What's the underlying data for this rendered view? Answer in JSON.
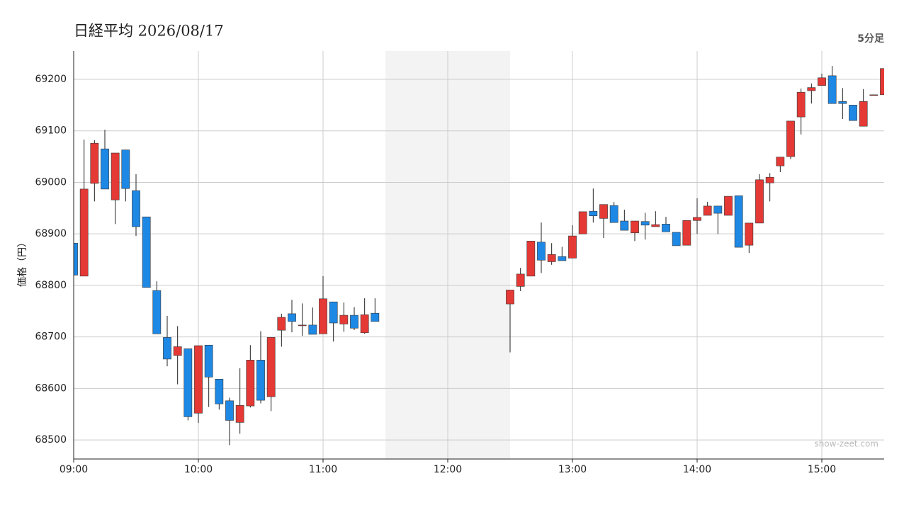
{
  "chart_data": {
    "type": "candlestick",
    "title": "日経平均 2026/08/17",
    "interval_label": "5分足",
    "y_label": "価格（円）",
    "watermark": "show-zeet.com",
    "up_color": "#e53935",
    "down_color": "#1e88e5",
    "xlim": [
      "09:00",
      "15:30"
    ],
    "xticks": [
      "09:00",
      "10:00",
      "11:00",
      "12:00",
      "13:00",
      "14:00",
      "15:00"
    ],
    "shade": [
      "11:30",
      "12:30"
    ],
    "ylim": [
      68463,
      69255
    ],
    "yticks": [
      68500,
      68600,
      68700,
      68800,
      68900,
      69000,
      69100,
      69200
    ],
    "grid": true,
    "x": [
      "09:00",
      "09:05",
      "09:10",
      "09:15",
      "09:20",
      "09:25",
      "09:30",
      "09:35",
      "09:40",
      "09:45",
      "09:50",
      "09:55",
      "10:00",
      "10:05",
      "10:10",
      "10:15",
      "10:20",
      "10:25",
      "10:30",
      "10:35",
      "10:40",
      "10:45",
      "10:50",
      "10:55",
      "11:00",
      "11:05",
      "11:10",
      "11:15",
      "11:20",
      "11:25",
      "12:30",
      "12:35",
      "12:40",
      "12:45",
      "12:50",
      "12:55",
      "13:00",
      "13:05",
      "13:10",
      "13:15",
      "13:20",
      "13:25",
      "13:30",
      "13:35",
      "13:40",
      "13:45",
      "13:50",
      "13:55",
      "14:00",
      "14:05",
      "14:10",
      "14:15",
      "14:20",
      "14:25",
      "14:30",
      "14:35",
      "14:40",
      "14:45",
      "14:50",
      "14:55",
      "15:00",
      "15:05",
      "15:10",
      "15:15",
      "15:20",
      "15:25",
      "15:30"
    ],
    "open": [
      68882,
      68818,
      68998,
      69065,
      68966,
      69063,
      68984,
      68933,
      68790,
      68699,
      68664,
      68677,
      68552,
      68684,
      68618,
      68576,
      68534,
      68566,
      68655,
      68584,
      68713,
      68745,
      68723,
      68723,
      68706,
      68768,
      68725,
      68742,
      68708,
      68746,
      68764,
      68798,
      68818,
      68884,
      68846,
      68856,
      68853,
      68900,
      68944,
      68930,
      68955,
      68925,
      68902,
      68924,
      68914,
      68919,
      68903,
      68878,
      68926,
      68936,
      68954,
      68936,
      68974,
      68878,
      68921,
      68999,
      69032,
      69050,
      69127,
      69178,
      69188,
      69207,
      69157,
      69150,
      69109,
      69170,
      69170
    ],
    "high": [
      68882,
      69083,
      69082,
      69102,
      69057,
      69063,
      69016,
      68933,
      68808,
      68741,
      68721,
      68677,
      68683,
      68684,
      68618,
      68582,
      68639,
      68684,
      68711,
      68699,
      68745,
      68772,
      68765,
      68757,
      68818,
      68768,
      68767,
      68758,
      68775,
      68775,
      68791,
      68834,
      68886,
      68922,
      68882,
      68875,
      68917,
      68943,
      68988,
      68957,
      68962,
      68947,
      68925,
      68941,
      68944,
      68933,
      68903,
      68926,
      68969,
      68962,
      68954,
      68973,
      68974,
      68921,
      69016,
      69018,
      69049,
      69119,
      69182,
      69192,
      69211,
      69226,
      69183,
      69150,
      69181,
      69170,
      69221
    ],
    "low": [
      68820,
      68818,
      68963,
      68987,
      68919,
      68963,
      68896,
      68796,
      68706,
      68643,
      68608,
      68538,
      68533,
      68564,
      68559,
      68490,
      68512,
      68563,
      68571,
      68556,
      68681,
      68709,
      68702,
      68705,
      68706,
      68691,
      68710,
      68713,
      68706,
      68730,
      68670,
      68789,
      68818,
      68824,
      68840,
      68848,
      68853,
      68900,
      68922,
      68892,
      68922,
      68907,
      68886,
      68889,
      68914,
      68904,
      68877,
      68878,
      68900,
      68936,
      68900,
      68936,
      68874,
      68863,
      68921,
      68963,
      69020,
      69045,
      69093,
      69153,
      69188,
      69153,
      69123,
      69120,
      69109,
      69170,
      69170
    ],
    "close": [
      68820,
      68987,
      69076,
      68987,
      69057,
      68988,
      68914,
      68796,
      68706,
      68657,
      68681,
      68545,
      68683,
      68622,
      68570,
      68538,
      68567,
      68655,
      68577,
      68699,
      68738,
      68730,
      68723,
      68705,
      68774,
      68727,
      68742,
      68717,
      68743,
      68730,
      68791,
      68822,
      68886,
      68849,
      68860,
      68848,
      68896,
      68943,
      68935,
      68957,
      68922,
      68907,
      68925,
      68917,
      68918,
      68904,
      68877,
      68926,
      68932,
      68954,
      68940,
      68973,
      68874,
      68921,
      69005,
      69010,
      69049,
      69119,
      69175,
      69184,
      69203,
      69153,
      69153,
      69120,
      69157,
      69170,
      69221
    ]
  }
}
